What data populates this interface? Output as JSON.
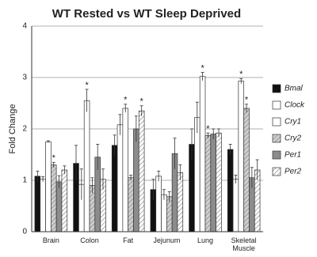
{
  "chart_data": {
    "type": "bar",
    "title": "WT Rested vs WT Sleep Deprived",
    "y_label": "Fold Change",
    "categories": [
      "Brain",
      "Colon",
      "Fat",
      "Jejunum",
      "Lung",
      "Skeletal Muscle"
    ],
    "ylim": [
      0,
      4
    ],
    "yticks": [
      0,
      1,
      2,
      3,
      4
    ],
    "grid": true,
    "legend": "right",
    "series": [
      {
        "name": "Bmal",
        "color": "#111111",
        "hatch": false,
        "values": [
          1.08,
          1.33,
          1.68,
          0.82,
          1.7,
          1.6
        ],
        "errors": [
          0.1,
          0.35,
          0.2,
          0.2,
          0.3,
          0.1
        ],
        "annotations": [
          null,
          null,
          null,
          null,
          null,
          null
        ]
      },
      {
        "name": "Clock",
        "color": "#ffffff",
        "hatch": false,
        "values": [
          1.02,
          0.92,
          2.08,
          1.08,
          2.22,
          1.02
        ],
        "errors": [
          0.05,
          0.3,
          0.2,
          0.1,
          0.3,
          0.08
        ],
        "annotations": [
          null,
          null,
          null,
          null,
          null,
          null
        ]
      },
      {
        "name": "Cry1",
        "color": "#ffffff",
        "hatch": false,
        "values": [
          1.75,
          2.55,
          2.4,
          0.72,
          3.02,
          2.93
        ],
        "errors": [
          0.02,
          0.22,
          0.08,
          0.1,
          0.08,
          0.05
        ],
        "annotations": [
          null,
          "*",
          "*",
          null,
          "*",
          "*"
        ]
      },
      {
        "name": "Cry2",
        "color": "#cfcfcf",
        "hatch": true,
        "values": [
          1.3,
          0.9,
          1.05,
          0.68,
          1.87,
          2.4
        ],
        "errors": [
          0.05,
          0.15,
          0.05,
          0.1,
          0.05,
          0.08
        ],
        "annotations": [
          "*",
          null,
          null,
          null,
          "*",
          "*"
        ]
      },
      {
        "name": "Per1",
        "color": "#8c8c8c",
        "hatch": false,
        "values": [
          0.97,
          1.45,
          2.0,
          1.52,
          1.9,
          1.05
        ],
        "errors": [
          0.12,
          0.25,
          0.25,
          0.3,
          0.1,
          0.2
        ],
        "annotations": [
          null,
          null,
          null,
          null,
          null,
          null
        ]
      },
      {
        "name": "Per2",
        "color": "#ffffff",
        "hatch": true,
        "values": [
          1.2,
          1.02,
          2.35,
          1.15,
          1.92,
          1.2
        ],
        "errors": [
          0.08,
          0.2,
          0.1,
          0.15,
          0.08,
          0.2
        ],
        "annotations": [
          null,
          null,
          "*",
          null,
          null,
          null
        ]
      }
    ]
  }
}
